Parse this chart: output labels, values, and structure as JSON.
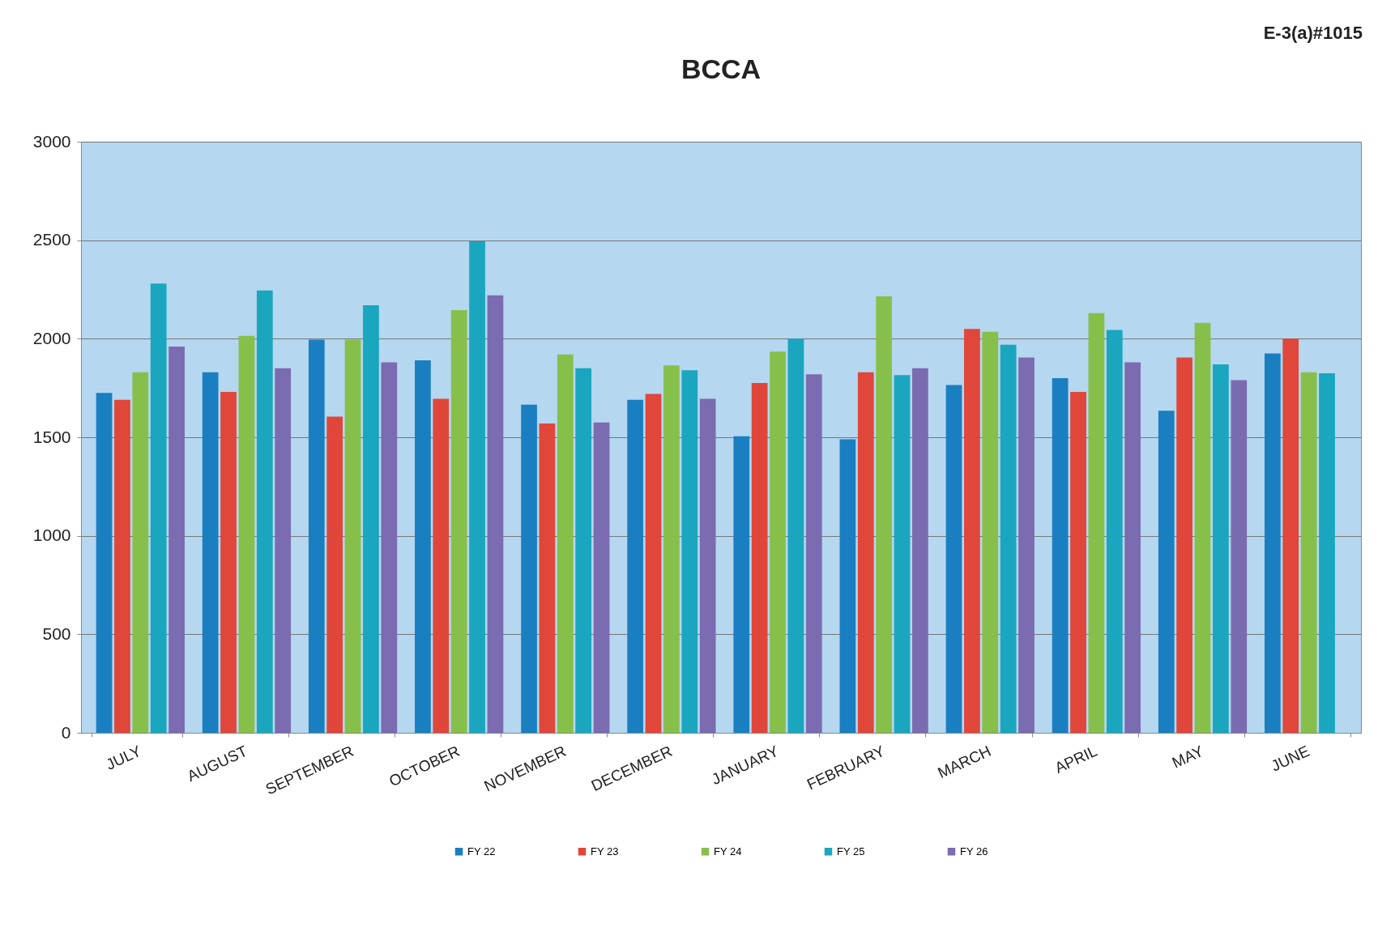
{
  "chart_data": {
    "type": "bar",
    "title": "BCCA",
    "annotations": [
      "E-3(a)#1015"
    ],
    "categories": [
      "JULY",
      "AUGUST",
      "SEPTEMBER",
      "OCTOBER",
      "NOVEMBER",
      "DECEMBER",
      "JANUARY",
      "FEBRUARY",
      "MARCH",
      "APRIL",
      "MAY",
      "JUNE"
    ],
    "series": [
      {
        "name": "FY 22",
        "color": "#1a7fc1",
        "values": [
          1725,
          1830,
          1995,
          1890,
          1665,
          1690,
          1505,
          1490,
          1765,
          1800,
          1635,
          1925
        ]
      },
      {
        "name": "FY 23",
        "color": "#e0473a",
        "values": [
          1690,
          1730,
          1605,
          1695,
          1570,
          1720,
          1775,
          1830,
          2050,
          1730,
          1905,
          2000
        ]
      },
      {
        "name": "FY 24",
        "color": "#86c04a",
        "values": [
          1830,
          2015,
          1995,
          2145,
          1920,
          1865,
          1935,
          2215,
          2035,
          2130,
          2080,
          1830
        ]
      },
      {
        "name": "FY 25",
        "color": "#1aa6bf",
        "values": [
          2280,
          2245,
          2170,
          2495,
          1850,
          1840,
          2000,
          1815,
          1970,
          2045,
          1870,
          1825
        ]
      },
      {
        "name": "FY 26",
        "color": "#7b6bb0",
        "values": [
          1960,
          1850,
          1880,
          2220,
          1575,
          1695,
          1820,
          1850,
          1905,
          1880,
          1790,
          null
        ]
      }
    ],
    "ylim": [
      0,
      3000
    ],
    "yticks": [
      0,
      500,
      1000,
      1500,
      2000,
      2500,
      3000
    ],
    "grid": "y",
    "legend": "bottom"
  }
}
